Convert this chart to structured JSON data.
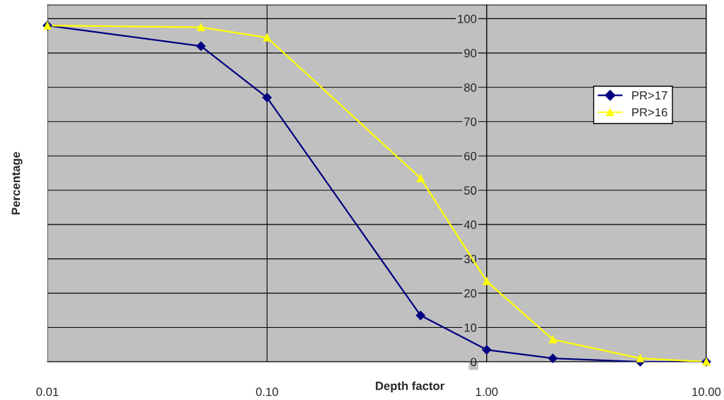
{
  "chart_data": {
    "type": "line",
    "xlabel": "Depth factor",
    "ylabel": "Percentage",
    "log": "x",
    "xlim": [
      0.01,
      10
    ],
    "xticks": [
      {
        "value": 0.01,
        "label": "0.01"
      },
      {
        "value": 0.1,
        "label": "0.10"
      },
      {
        "value": 1,
        "label": "1.00"
      },
      {
        "value": 10,
        "label": "10.00"
      }
    ],
    "ylim": [
      0,
      104
    ],
    "yticks": [
      0,
      10,
      20,
      30,
      40,
      50,
      60,
      70,
      80,
      90,
      100
    ],
    "grid": true,
    "legend": "right",
    "line_style": "solid",
    "x": [
      0.01,
      0.05,
      0.1,
      0.5,
      1,
      2,
      5,
      10
    ],
    "series": [
      {
        "name": "PR>17",
        "color": "#000080",
        "marker": "diamond",
        "values": [
          98,
          92,
          77,
          13.5,
          3.5,
          1,
          0,
          0
        ]
      },
      {
        "name": "PR>16",
        "color": "#ffff00",
        "marker": "triangle",
        "values": [
          98,
          97.5,
          94.5,
          53.5,
          23.5,
          6.5,
          1,
          0
        ]
      }
    ]
  }
}
